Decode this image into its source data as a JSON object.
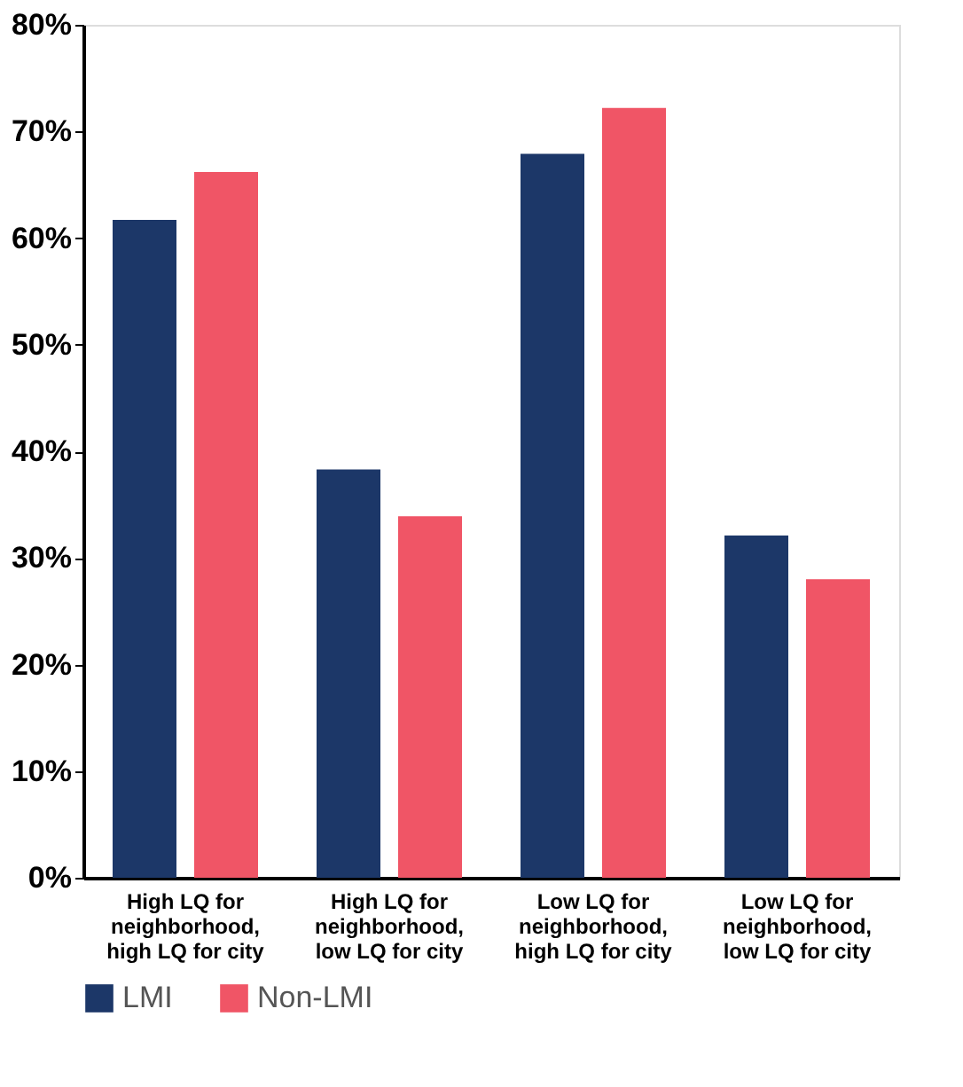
{
  "chart_data": {
    "type": "bar",
    "categories": [
      "High LQ for neighborhood, high LQ for city",
      "High LQ for neighborhood, low LQ for city",
      "Low LQ for neighborhood, high LQ for city",
      "Low LQ for neighborhood, low LQ for city"
    ],
    "series": [
      {
        "name": "LMI",
        "color": "#1c3768",
        "values": [
          61.7,
          38.3,
          67.9,
          32.1
        ]
      },
      {
        "name": "Non-LMI",
        "color": "#f05566",
        "values": [
          66.2,
          33.9,
          72.2,
          28.0
        ]
      }
    ],
    "ylim": [
      0,
      80
    ],
    "yticks": [
      {
        "value": 0,
        "label": "0%"
      },
      {
        "value": 10,
        "label": "10%"
      },
      {
        "value": 20,
        "label": "20%"
      },
      {
        "value": 30,
        "label": "30%"
      },
      {
        "value": 40,
        "label": "40%"
      },
      {
        "value": 50,
        "label": "50%"
      },
      {
        "value": 60,
        "label": "60%"
      },
      {
        "value": 70,
        "label": "70%"
      },
      {
        "value": 80,
        "label": "80%"
      }
    ],
    "grid": false,
    "legend": "bottom left"
  }
}
